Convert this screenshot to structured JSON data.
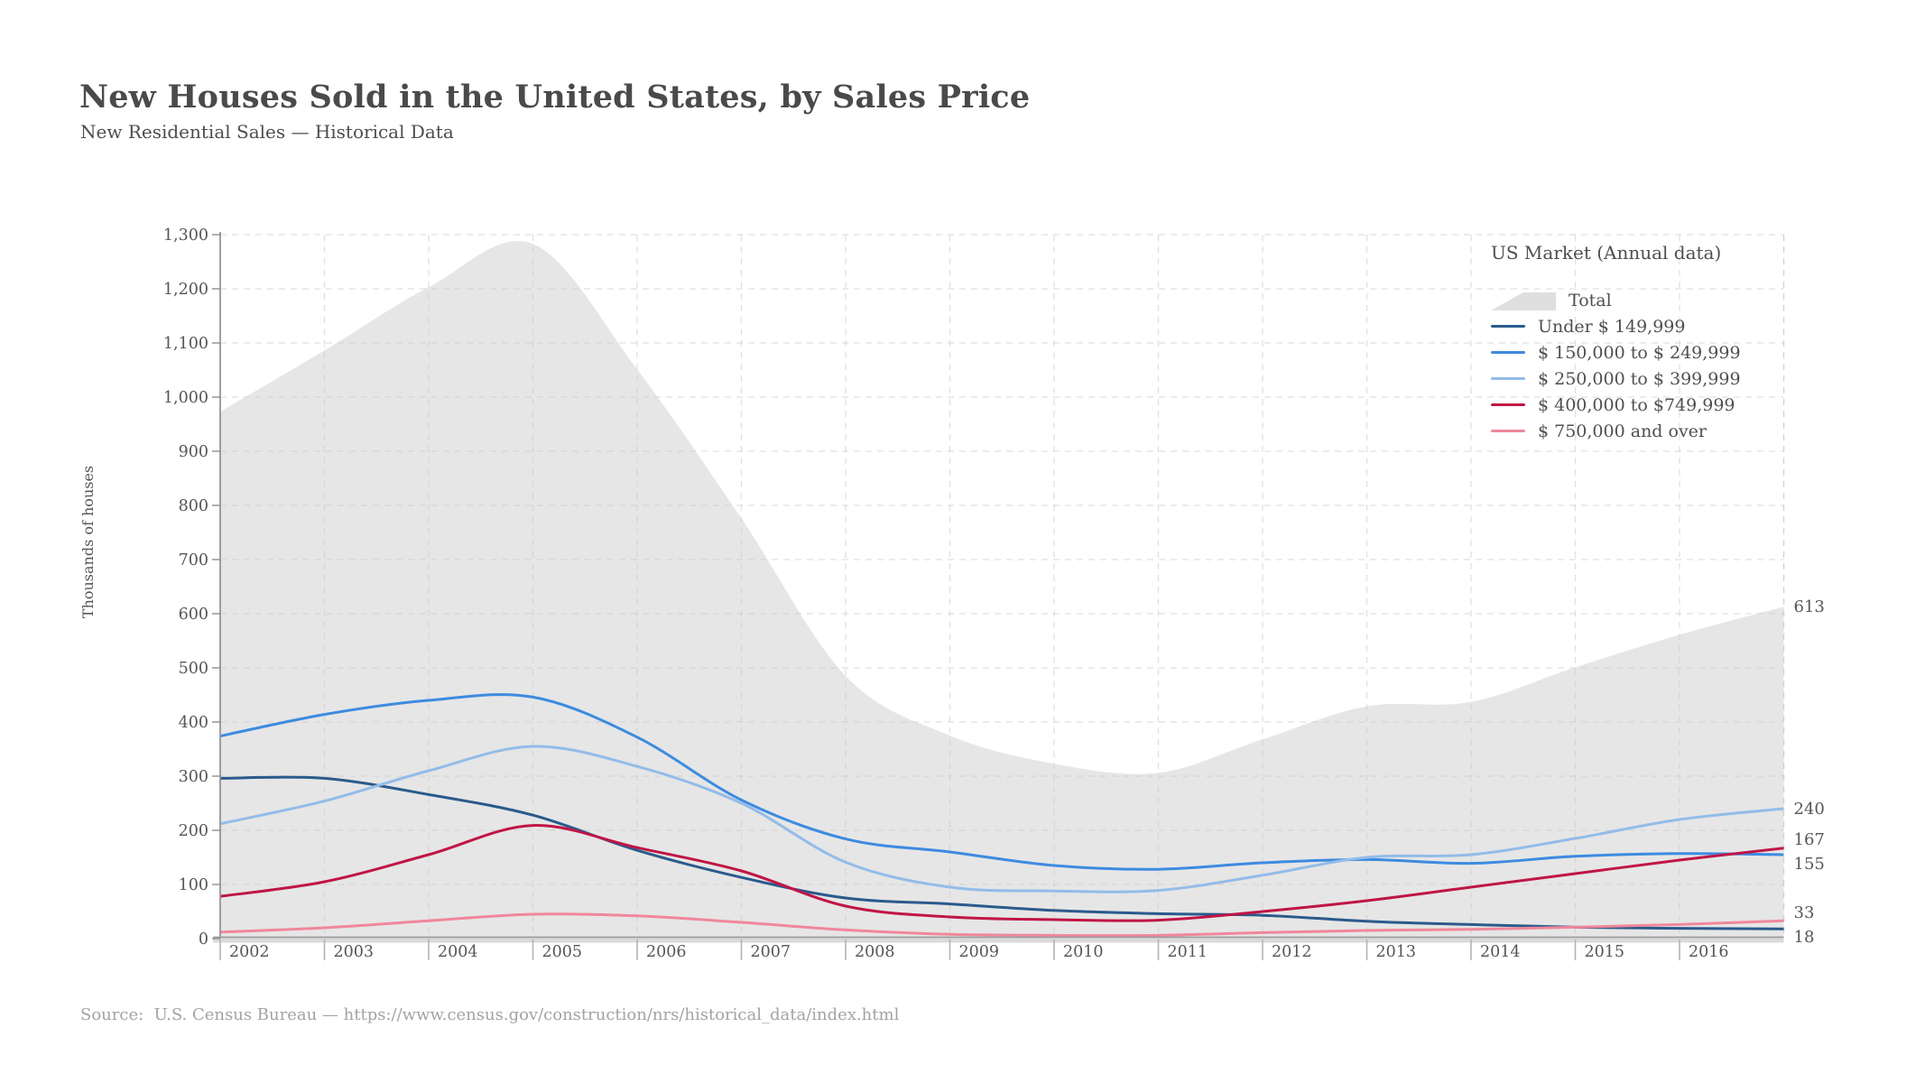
{
  "header": {
    "title": "New Houses Sold in the United States, by Sales Price",
    "subtitle": "New Residential Sales — Historical Data"
  },
  "chart": {
    "y_axis_title": "Thousands of houses",
    "y_tick_labels": [
      "0",
      "100",
      "200",
      "300",
      "400",
      "500",
      "600",
      "700",
      "800",
      "900",
      "1,000",
      "1,100",
      "1,200",
      "1,300"
    ],
    "x_tick_labels": [
      "2002",
      "2003",
      "2004",
      "2005",
      "2006",
      "2007",
      "2008",
      "2009",
      "2010",
      "2011",
      "2012",
      "2013",
      "2014",
      "2015",
      "2016"
    ],
    "end_labels": [
      "613",
      "240",
      "167",
      "155",
      "33",
      "18"
    ],
    "colors": {
      "total_area": "#e6e6e6",
      "under_150k": "#2a5a8c",
      "k150_249": "#3d8be0",
      "k250_399": "#93bce8",
      "k400_749": "#c01545",
      "k750_over": "#f0879b",
      "grid": "#c9c9c9",
      "axis": "#8f8f8f",
      "tick_text": "#565656"
    },
    "legend": {
      "title": "US Market (Annual data)",
      "items": [
        {
          "label": "Total",
          "swatch": "area",
          "color": "#dfdfdf"
        },
        {
          "label": "Under $ 149,999",
          "swatch": "line",
          "color": "#2a5a8c"
        },
        {
          "label": "$ 150,000 to $ 249,999",
          "swatch": "line",
          "color": "#3d8be0"
        },
        {
          "label": "$ 250,000 to $ 399,999",
          "swatch": "line",
          "color": "#93bce8"
        },
        {
          "label": "$ 400,000 to $749,999",
          "swatch": "line",
          "color": "#c01545"
        },
        {
          "label": "$ 750,000 and over",
          "swatch": "line",
          "color": "#f0879b"
        }
      ]
    }
  },
  "chart_data": {
    "type": "line",
    "title": "New Houses Sold in the United States, by Sales Price",
    "subtitle": "New Residential Sales — Historical Data",
    "xlabel": "",
    "ylabel": "Thousands of houses",
    "ylim": [
      0,
      1300
    ],
    "xlim": [
      2002,
      2017
    ],
    "grid": true,
    "legend_position": "top-right",
    "x": [
      2002,
      2003,
      2004,
      2005,
      2006,
      2007,
      2008,
      2009,
      2010,
      2011,
      2012,
      2013,
      2014,
      2015,
      2016,
      2017
    ],
    "series": [
      {
        "name": "Total",
        "style": "area",
        "color": "#e6e6e6",
        "values": [
          973,
          1086,
          1203,
          1283,
          1051,
          776,
          485,
          375,
          323,
          306,
          368,
          429,
          437,
          501,
          561,
          613
        ]
      },
      {
        "name": "Under $ 149,999",
        "style": "line",
        "color": "#2a5a8c",
        "values": [
          296,
          296,
          266,
          228,
          163,
          113,
          75,
          64,
          52,
          46,
          43,
          32,
          26,
          21,
          19,
          18
        ]
      },
      {
        "name": "$ 150,000 to $ 249,999",
        "style": "line",
        "color": "#3d8be0",
        "values": [
          374,
          414,
          440,
          446,
          372,
          256,
          184,
          160,
          135,
          128,
          140,
          146,
          139,
          152,
          157,
          155
        ]
      },
      {
        "name": "$ 250,000 to $ 399,999",
        "style": "line",
        "color": "#93bce8",
        "values": [
          212,
          254,
          310,
          355,
          318,
          250,
          141,
          95,
          88,
          89,
          117,
          150,
          155,
          185,
          220,
          240
        ]
      },
      {
        "name": "$ 400,000 to $749,999",
        "style": "line",
        "color": "#c01545",
        "values": [
          78,
          105,
          155,
          209,
          168,
          125,
          60,
          40,
          35,
          34,
          50,
          70,
          95,
          120,
          145,
          167
        ]
      },
      {
        "name": "$ 750,000 and over",
        "style": "line",
        "color": "#f0879b",
        "values": [
          12,
          20,
          33,
          45,
          42,
          30,
          16,
          8,
          6,
          6,
          11,
          15,
          17,
          21,
          26,
          33
        ]
      }
    ]
  },
  "source": {
    "text": "Source:  U.S. Census Bureau — https://www.census.gov/construction/nrs/historical_data/index.html"
  }
}
